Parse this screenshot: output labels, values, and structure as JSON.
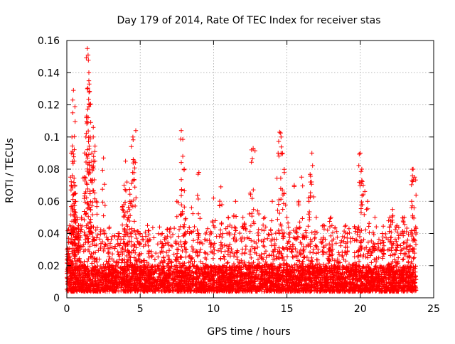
{
  "chart_data": {
    "type": "scatter",
    "title": "Day 179 of 2014, Rate Of TEC Index for receiver stas",
    "xlabel": "GPS time / hours",
    "ylabel": "ROTI / TECUs",
    "xlim": [
      0,
      25
    ],
    "ylim": [
      0,
      0.16
    ],
    "xticks": [
      0,
      5,
      10,
      15,
      20,
      25
    ],
    "xtick_labels": [
      "0",
      "5",
      "10",
      "15",
      "20",
      "25"
    ],
    "yticks": [
      0,
      0.02,
      0.04,
      0.06,
      0.08,
      0.1,
      0.12,
      0.14,
      0.16
    ],
    "ytick_labels": [
      "0",
      "0.02",
      "0.04",
      "0.06",
      "0.08",
      "0.1",
      "0.12",
      "0.14",
      "0.16"
    ],
    "grid": true,
    "marker": "+",
    "marker_color": "#ff0000",
    "series": [
      {
        "name": "ROTI",
        "x": [
          0.1,
          0.2,
          0.25,
          0.3,
          0.3,
          0.35,
          0.4,
          0.4,
          0.45,
          0.5,
          0.5,
          0.5,
          0.55,
          0.6,
          0.7,
          0.8,
          1.0,
          1.2,
          1.3,
          1.35,
          1.4,
          1.4,
          1.45,
          1.5,
          1.5,
          1.55,
          1.6,
          1.7,
          1.7,
          1.8,
          1.8,
          2.0,
          2.5,
          3.5,
          3.8,
          3.9,
          4.0,
          4.1,
          4.2,
          4.3,
          4.4,
          4.5,
          4.6,
          4.7,
          5.0,
          5.5,
          6.5,
          7.5,
          7.8,
          7.9,
          8.0,
          8.5,
          9.0,
          10.0,
          10.5,
          11.0,
          11.5,
          12.0,
          12.5,
          12.7,
          13.0,
          13.5,
          14.0,
          14.4,
          14.5,
          14.6,
          14.7,
          14.8,
          15.0,
          15.5,
          15.8,
          16.0,
          16.5,
          16.6,
          16.7,
          17.0,
          17.5,
          18.0,
          19.0,
          20.0,
          20.1,
          20.2,
          20.5,
          21.0,
          21.5,
          22.0,
          22.2,
          22.5,
          23.0,
          23.5,
          23.6,
          23.7
        ],
        "y": [
          0.03,
          0.045,
          0.075,
          0.09,
          0.07,
          0.1,
          0.115,
          0.123,
          0.129,
          0.085,
          0.065,
          0.055,
          0.07,
          0.06,
          0.05,
          0.045,
          0.05,
          0.075,
          0.1,
          0.113,
          0.13,
          0.155,
          0.151,
          0.14,
          0.135,
          0.12,
          0.1,
          0.09,
          0.085,
          0.106,
          0.1,
          0.06,
          0.087,
          0.04,
          0.055,
          0.07,
          0.085,
          0.072,
          0.05,
          0.06,
          0.094,
          0.1,
          0.085,
          0.104,
          0.04,
          0.045,
          0.04,
          0.06,
          0.104,
          0.088,
          0.08,
          0.056,
          0.078,
          0.062,
          0.069,
          0.05,
          0.06,
          0.05,
          0.065,
          0.093,
          0.054,
          0.05,
          0.06,
          0.09,
          0.103,
          0.1,
          0.09,
          0.065,
          0.05,
          0.07,
          0.06,
          0.075,
          0.06,
          0.072,
          0.09,
          0.05,
          0.045,
          0.05,
          0.045,
          0.09,
          0.08,
          0.07,
          0.06,
          0.05,
          0.04,
          0.05,
          0.055,
          0.045,
          0.05,
          0.06,
          0.08,
          0.075
        ]
      }
    ],
    "background_band": {
      "description_values": "dense ROTI floor across the whole day",
      "x_range": [
        0,
        23.8
      ],
      "y_floor": [
        0.004,
        0.02
      ],
      "y_spread_max": 0.045
    }
  }
}
